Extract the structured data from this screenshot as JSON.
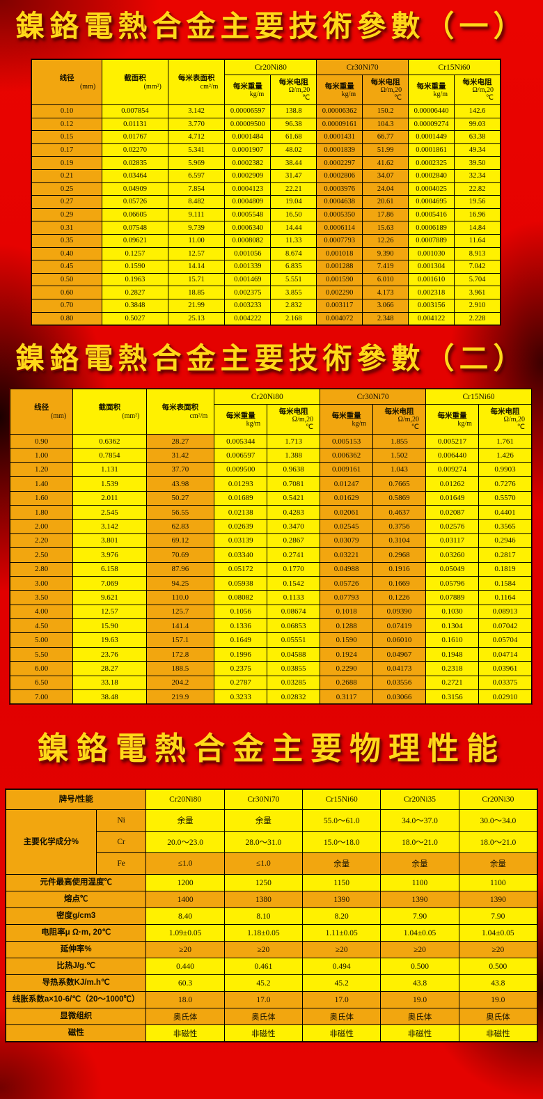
{
  "colors": {
    "gold": "#F2A60F",
    "yellow": "#FFF100",
    "background_red": "#E00000",
    "title_gold": "#FFD919"
  },
  "titles": {
    "params1": "鎳鉻電熱合金主要技術參數（一）",
    "params2": "鎳鉻電熱合金主要技術參數（二）",
    "physical": "鎳鉻電熱合金主要物理性能"
  },
  "param_header": {
    "diameter": {
      "label": "线径",
      "unit": "(mm)"
    },
    "area": {
      "label": "截面积",
      "unit": "(mm²)"
    },
    "surface": {
      "label": "每米表面积",
      "unit": "cm²/m"
    },
    "alloys": [
      "Cr20Ni80",
      "Cr30Ni70",
      "Cr15Ni60"
    ],
    "weight": {
      "label": "每米重量",
      "unit": "kg/m"
    },
    "resistance": {
      "label": "每米电阻",
      "unit": "Ω/m,20",
      "unit2": "℃"
    }
  },
  "table1": {
    "rows": [
      [
        "0.10",
        "0.007854",
        "3.142",
        "0.00006597",
        "138.8",
        "0.00006362",
        "150.2",
        "0.00006440",
        "142.6"
      ],
      [
        "0.12",
        "0.01131",
        "3.770",
        "0.00009500",
        "96.38",
        "0.00009161",
        "104.3",
        "0.00009274",
        "99.03"
      ],
      [
        "0.15",
        "0.01767",
        "4.712",
        "0.0001484",
        "61.68",
        "0.0001431",
        "66.77",
        "0.0001449",
        "63.38"
      ],
      [
        "0.17",
        "0.02270",
        "5.341",
        "0.0001907",
        "48.02",
        "0.0001839",
        "51.99",
        "0.0001861",
        "49.34"
      ],
      [
        "0.19",
        "0.02835",
        "5.969",
        "0.0002382",
        "38.44",
        "0.0002297",
        "41.62",
        "0.0002325",
        "39.50"
      ],
      [
        "0.21",
        "0.03464",
        "6.597",
        "0.0002909",
        "31.47",
        "0.0002806",
        "34.07",
        "0.0002840",
        "32.34"
      ],
      [
        "0.25",
        "0.04909",
        "7.854",
        "0.0004123",
        "22.21",
        "0.0003976",
        "24.04",
        "0.0004025",
        "22.82"
      ],
      [
        "0.27",
        "0.05726",
        "8.482",
        "0.0004809",
        "19.04",
        "0.0004638",
        "20.61",
        "0.0004695",
        "19.56"
      ],
      [
        "0.29",
        "0.06605",
        "9.111",
        "0.0005548",
        "16.50",
        "0.0005350",
        "17.86",
        "0.0005416",
        "16.96"
      ],
      [
        "0.31",
        "0.07548",
        "9.739",
        "0.0006340",
        "14.44",
        "0.0006114",
        "15.63",
        "0.0006189",
        "14.84"
      ],
      [
        "0.35",
        "0.09621",
        "11.00",
        "0.0008082",
        "11.33",
        "0.0007793",
        "12.26",
        "0.0007889",
        "11.64"
      ],
      [
        "0.40",
        "0.1257",
        "12.57",
        "0.001056",
        "8.674",
        "0.001018",
        "9.390",
        "0.001030",
        "8.913"
      ],
      [
        "0.45",
        "0.1590",
        "14.14",
        "0.001339",
        "6.835",
        "0.001288",
        "7.419",
        "0.001304",
        "7.042"
      ],
      [
        "0.50",
        "0.1963",
        "15.71",
        "0.001469",
        "5.551",
        "0.001590",
        "6.010",
        "0.001610",
        "5.704"
      ],
      [
        "0.60",
        "0.2827",
        "18.85",
        "0.002375",
        "3.855",
        "0.002290",
        "4.173",
        "0.002318",
        "3.961"
      ],
      [
        "0.70",
        "0.3848",
        "21.99",
        "0.003233",
        "2.832",
        "0.003117",
        "3.066",
        "0.003156",
        "2.910"
      ],
      [
        "0.80",
        "0.5027",
        "25.13",
        "0.004222",
        "2.168",
        "0.004072",
        "2.348",
        "0.004122",
        "2.228"
      ]
    ]
  },
  "table2": {
    "rows": [
      [
        "0.90",
        "0.6362",
        "28.27",
        "0.005344",
        "1.713",
        "0.005153",
        "1.855",
        "0.005217",
        "1.761"
      ],
      [
        "1.00",
        "0.7854",
        "31.42",
        "0.006597",
        "1.388",
        "0.006362",
        "1.502",
        "0.006440",
        "1.426"
      ],
      [
        "1.20",
        "1.131",
        "37.70",
        "0.009500",
        "0.9638",
        "0.009161",
        "1.043",
        "0.009274",
        "0.9903"
      ],
      [
        "1.40",
        "1.539",
        "43.98",
        "0.01293",
        "0.7081",
        "0.01247",
        "0.7665",
        "0.01262",
        "0.7276"
      ],
      [
        "1.60",
        "2.011",
        "50.27",
        "0.01689",
        "0.5421",
        "0.01629",
        "0.5869",
        "0.01649",
        "0.5570"
      ],
      [
        "1.80",
        "2.545",
        "56.55",
        "0.02138",
        "0.4283",
        "0.02061",
        "0.4637",
        "0.02087",
        "0.4401"
      ],
      [
        "2.00",
        "3.142",
        "62.83",
        "0.02639",
        "0.3470",
        "0.02545",
        "0.3756",
        "0.02576",
        "0.3565"
      ],
      [
        "2.20",
        "3.801",
        "69.12",
        "0.03139",
        "0.2867",
        "0.03079",
        "0.3104",
        "0.03117",
        "0.2946"
      ],
      [
        "2.50",
        "3.976",
        "70.69",
        "0.03340",
        "0.2741",
        "0.03221",
        "0.2968",
        "0.03260",
        "0.2817"
      ],
      [
        "2.80",
        "6.158",
        "87.96",
        "0.05172",
        "0.1770",
        "0.04988",
        "0.1916",
        "0.05049",
        "0.1819"
      ],
      [
        "3.00",
        "7.069",
        "94.25",
        "0.05938",
        "0.1542",
        "0.05726",
        "0.1669",
        "0.05796",
        "0.1584"
      ],
      [
        "3.50",
        "9.621",
        "110.0",
        "0.08082",
        "0.1133",
        "0.07793",
        "0.1226",
        "0.07889",
        "0.1164"
      ],
      [
        "4.00",
        "12.57",
        "125.7",
        "0.1056",
        "0.08674",
        "0.1018",
        "0.09390",
        "0.1030",
        "0.08913"
      ],
      [
        "4.50",
        "15.90",
        "141.4",
        "0.1336",
        "0.06853",
        "0.1288",
        "0.07419",
        "0.1304",
        "0.07042"
      ],
      [
        "5.00",
        "19.63",
        "157.1",
        "0.1649",
        "0.05551",
        "0.1590",
        "0.06010",
        "0.1610",
        "0.05704"
      ],
      [
        "5.50",
        "23.76",
        "172.8",
        "0.1996",
        "0.04588",
        "0.1924",
        "0.04967",
        "0.1948",
        "0.04714"
      ],
      [
        "6.00",
        "28.27",
        "188.5",
        "0.2375",
        "0.03855",
        "0.2290",
        "0.04173",
        "0.2318",
        "0.03961"
      ],
      [
        "6.50",
        "33.18",
        "204.2",
        "0.2787",
        "0.03285",
        "0.2688",
        "0.03556",
        "0.2721",
        "0.03375"
      ],
      [
        "7.00",
        "38.48",
        "219.9",
        "0.3233",
        "0.02832",
        "0.3117",
        "0.03066",
        "0.3156",
        "0.02910"
      ]
    ]
  },
  "physical": {
    "header": [
      "牌号/性能",
      "Cr20Ni80",
      "Cr30Ni70",
      "Cr15Ni60",
      "Cr20Ni35",
      "Cr20Ni30"
    ],
    "chem_label": "主要化学成分%",
    "chem_rows": [
      {
        "element": "Ni",
        "shade": "yellow",
        "values": [
          "余量",
          "余量",
          "55.0～61.0",
          "34.0～37.0",
          "30.0～34.0"
        ]
      },
      {
        "element": "Cr",
        "shade": "yellow",
        "values": [
          "20.0～23.0",
          "28.0～31.0",
          "15.0～18.0",
          "18.0～21.0",
          "18.0～21.0"
        ]
      },
      {
        "element": "Fe",
        "shade": "gold",
        "values": [
          "≤1.0",
          "≤1.0",
          "余量",
          "余量",
          "余量"
        ]
      }
    ],
    "rows": [
      {
        "label": "元件最高使用温度℃",
        "shade": "yellow",
        "values": [
          "1200",
          "1250",
          "1150",
          "1100",
          "1100"
        ]
      },
      {
        "label": "熔点℃",
        "shade": "gold",
        "values": [
          "1400",
          "1380",
          "1390",
          "1390",
          "1390"
        ]
      },
      {
        "label": "密度g/cm3",
        "shade": "yellow",
        "values": [
          "8.40",
          "8.10",
          "8.20",
          "7.90",
          "7.90"
        ]
      },
      {
        "label": "电阻率μ Ω·m, 20℃",
        "shade": "yellow",
        "values": [
          "1.09±0.05",
          "1.18±0.05",
          "1.11±0.05",
          "1.04±0.05",
          "1.04±0.05"
        ]
      },
      {
        "label": "延伸率%",
        "shade": "gold",
        "values": [
          "≥20",
          "≥20",
          "≥20",
          "≥20",
          "≥20"
        ]
      },
      {
        "label": "比热J/g.℃",
        "shade": "yellow",
        "values": [
          "0.440",
          "0.461",
          "0.494",
          "0.500",
          "0.500"
        ]
      },
      {
        "label": "导热系数KJ/m.h℃",
        "shade": "yellow",
        "values": [
          "60.3",
          "45.2",
          "45.2",
          "43.8",
          "43.8"
        ]
      },
      {
        "label": "线胀系数a×10-6/℃（20～1000℃）",
        "shade": "gold",
        "values": [
          "18.0",
          "17.0",
          "17.0",
          "19.0",
          "19.0"
        ]
      },
      {
        "label": "显微组织",
        "shade": "gold",
        "values": [
          "奥氏体",
          "奥氏体",
          "奥氏体",
          "奥氏体",
          "奥氏体"
        ]
      },
      {
        "label": "磁性",
        "shade": "yellow",
        "values": [
          "非磁性",
          "非磁性",
          "非磁性",
          "非磁性",
          "非磁性"
        ]
      }
    ]
  }
}
